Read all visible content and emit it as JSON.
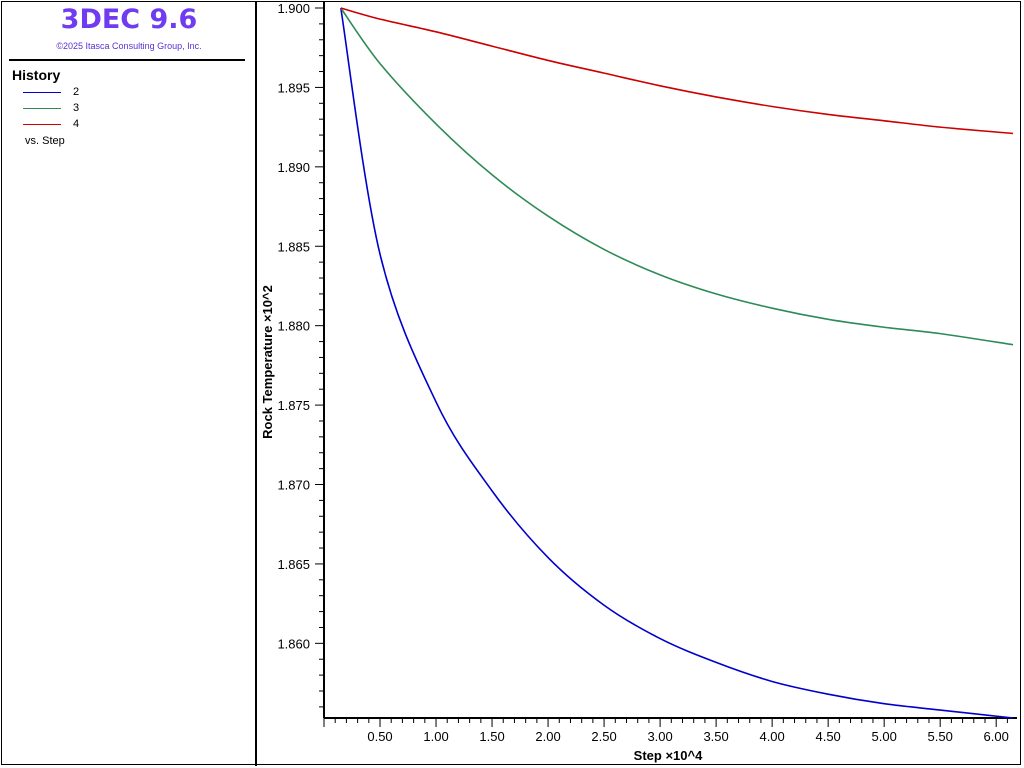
{
  "app": {
    "title": "3DEC 9.6",
    "copyright": "©2025 Itasca Consulting Group, Inc.",
    "title_color": "#6f3cf2"
  },
  "legend": {
    "heading": "History",
    "items": [
      {
        "label": "2",
        "color": "#0000cc"
      },
      {
        "label": "3",
        "color": "#2e8b57"
      },
      {
        "label": "4",
        "color": "#cc0000"
      }
    ],
    "versus": "vs. Step"
  },
  "chart_data": {
    "type": "line",
    "xlabel": "Step ×10^4",
    "ylabel": "Rock Temperature ×10^2",
    "xlim": [
      0,
      6.15
    ],
    "ylim": [
      1.8553,
      1.9
    ],
    "xticks": [
      "0.50",
      "1.00",
      "1.50",
      "2.00",
      "2.50",
      "3.00",
      "3.50",
      "4.00",
      "4.50",
      "5.00",
      "5.50",
      "6.00"
    ],
    "xtick_values": [
      0.5,
      1.0,
      1.5,
      2.0,
      2.5,
      3.0,
      3.5,
      4.0,
      4.5,
      5.0,
      5.5,
      6.0
    ],
    "yticks": [
      "1.860",
      "1.865",
      "1.870",
      "1.875",
      "1.880",
      "1.885",
      "1.890",
      "1.895",
      "1.900"
    ],
    "ytick_values": [
      1.86,
      1.865,
      1.87,
      1.875,
      1.88,
      1.885,
      1.89,
      1.895,
      1.9
    ],
    "grid": false,
    "series": [
      {
        "name": "2",
        "color": "#0000cc",
        "x": [
          0.15,
          0.5,
          1.0,
          1.5,
          2.0,
          2.5,
          3.0,
          3.5,
          4.0,
          4.5,
          5.0,
          5.5,
          6.15
        ],
        "y": [
          1.9,
          1.8845,
          1.8752,
          1.8696,
          1.8654,
          1.8624,
          1.8603,
          1.8588,
          1.8576,
          1.8568,
          1.8562,
          1.8558,
          1.8553
        ]
      },
      {
        "name": "3",
        "color": "#2e8b57",
        "x": [
          0.15,
          0.5,
          1.0,
          1.5,
          2.0,
          2.5,
          3.0,
          3.5,
          4.0,
          4.5,
          5.0,
          5.5,
          6.15
        ],
        "y": [
          1.9,
          1.8965,
          1.8927,
          1.8895,
          1.8869,
          1.8848,
          1.8832,
          1.882,
          1.8811,
          1.8804,
          1.8799,
          1.8795,
          1.8788
        ]
      },
      {
        "name": "4",
        "color": "#cc0000",
        "x": [
          0.15,
          0.5,
          1.0,
          1.5,
          2.0,
          2.5,
          3.0,
          3.5,
          4.0,
          4.5,
          5.0,
          5.5,
          6.15
        ],
        "y": [
          1.9,
          1.8993,
          1.8985,
          1.8976,
          1.8967,
          1.8959,
          1.8951,
          1.8944,
          1.8938,
          1.8933,
          1.8929,
          1.8925,
          1.8921
        ]
      }
    ]
  }
}
